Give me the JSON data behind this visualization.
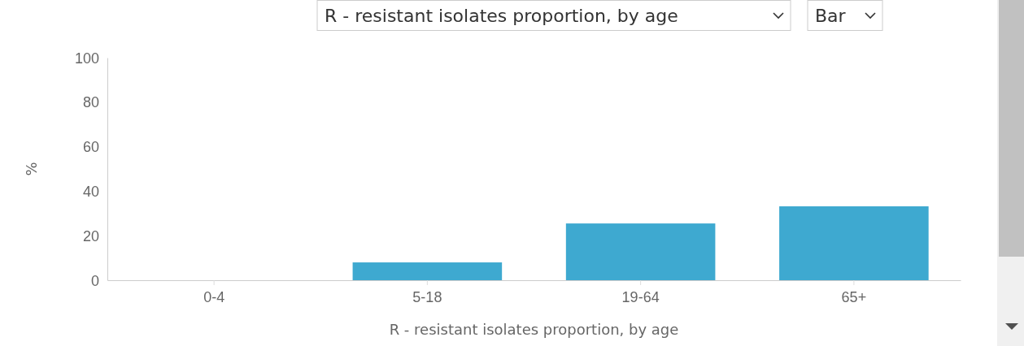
{
  "chart_data": {
    "type": "bar",
    "categories": [
      "0-4",
      "5-18",
      "19-64",
      "65+"
    ],
    "values": [
      0,
      8,
      25.5,
      33.2
    ],
    "color": "#3ea9d0",
    "ylim": [
      0,
      100
    ],
    "yticks": [
      0,
      20,
      40,
      60,
      80,
      100
    ],
    "ylabel": "%",
    "xlabel": "R - resistant isolates proportion, by age",
    "annotations": [
      "R - resistant isolates proportion, by age",
      "Bar"
    ],
    "grid": false
  }
}
